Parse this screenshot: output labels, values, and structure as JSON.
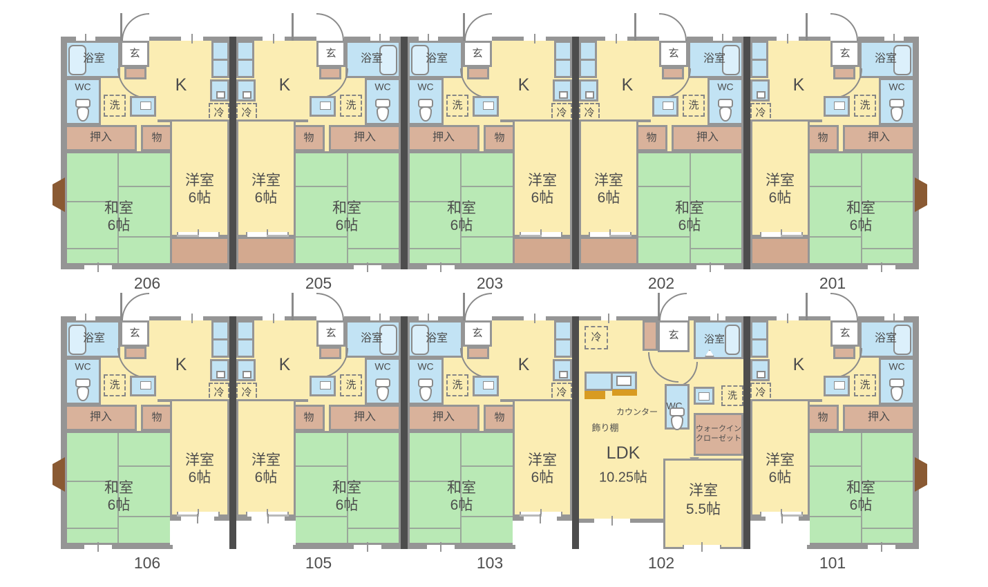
{
  "labels": {
    "bath": "浴室",
    "entry": "玄",
    "wc": "WC",
    "washer": "洗",
    "fridge": "冷",
    "kitchen": "K",
    "closet": "押入",
    "storage": "物",
    "jp_room": "和室",
    "jp_size": "6帖",
    "w_room": "洋室",
    "w_size": "6帖",
    "ldk": "LDK",
    "ldk_size": "10.25帖",
    "w55_size": "5.5帖",
    "counter": "カウンター",
    "shelf": "飾り棚",
    "wic1": "ウォークイン",
    "wic2": "クローゼット"
  },
  "floors": [
    {
      "id": "2F",
      "units": [
        {
          "number": "206",
          "type": "standard",
          "mirror": false,
          "bay": "left"
        },
        {
          "number": "205",
          "type": "standard",
          "mirror": true,
          "bay": null
        },
        {
          "number": "203",
          "type": "standard",
          "mirror": false,
          "bay": null
        },
        {
          "number": "202",
          "type": "standard",
          "mirror": true,
          "bay": null
        },
        {
          "number": "201",
          "type": "standard",
          "mirror": true,
          "bay": "right"
        }
      ]
    },
    {
      "id": "1F",
      "units": [
        {
          "number": "106",
          "type": "standard",
          "mirror": false,
          "bay": "left"
        },
        {
          "number": "105",
          "type": "standard",
          "mirror": true,
          "bay": null
        },
        {
          "number": "103",
          "type": "standard",
          "mirror": false,
          "bay": null
        },
        {
          "number": "102",
          "type": "ldk",
          "mirror": false,
          "bay": null
        },
        {
          "number": "101",
          "type": "standard",
          "mirror": true,
          "bay": "right"
        }
      ]
    }
  ],
  "colors": {
    "room_yellow": "#FBEDB3",
    "room_green": "#B9E9B5",
    "room_blue": "#C2E3F4",
    "tub_blue": "#DCF0FB",
    "closet_brown": "#D9B29B",
    "balcony_brown": "#D3A98F",
    "counter_orange": "#D89B22",
    "wall": "#959595",
    "wall_dark": "#4D4D4D",
    "bay_brown": "#8A5A33",
    "line": "#8A8A8A",
    "text": "#4D4D4D"
  }
}
